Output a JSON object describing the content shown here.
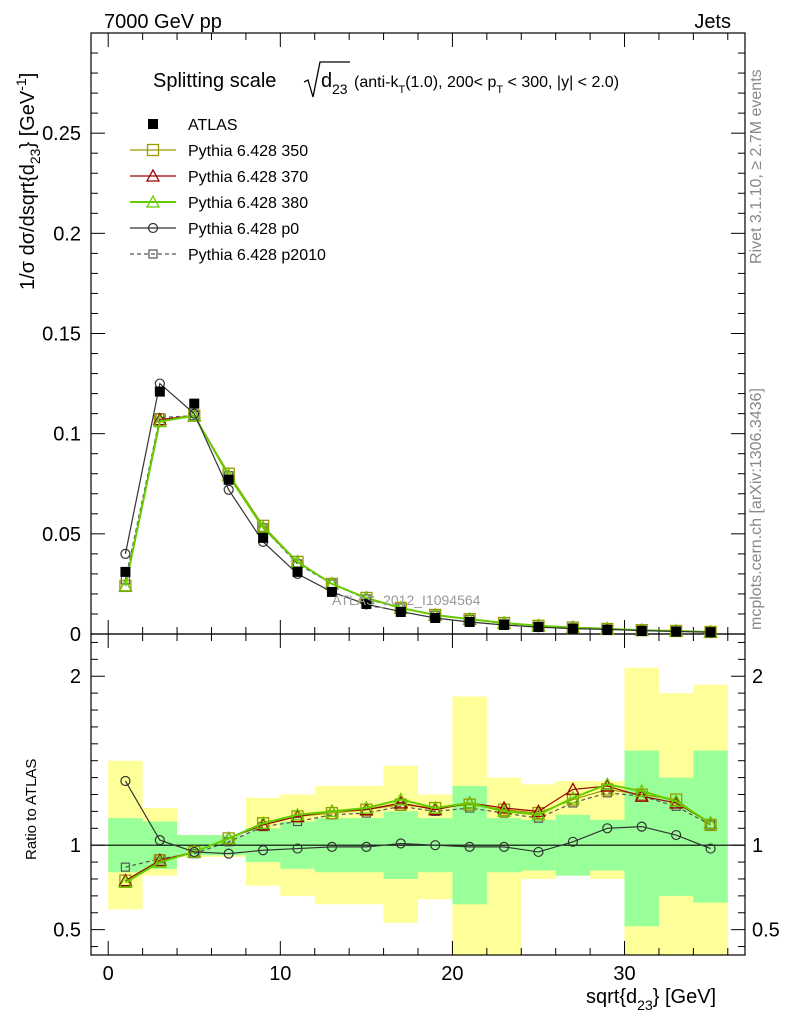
{
  "header": {
    "left": "7000 GeV pp",
    "right": "Jets",
    "side_top": "Rivet 3.1.10, ≥ 2.7M events",
    "side_bottom": "mcplots.cern.ch [arXiv:1306.3436]"
  },
  "watermark": "ATLAS_2012_I1094564",
  "title": {
    "main": "Splitting scale",
    "sqrt_arg": "d",
    "sqrt_sub": "23",
    "detail_a": "(anti-k",
    "detail_sub": "T",
    "detail_b": "(1.0), 200< p",
    "detail_sub2": "T",
    "detail_c": " < 300, |y| < 2.0)"
  },
  "axes": {
    "ylabel_main": "1/σ dσ/dsqrt{d",
    "ylabel_main_sub": "23",
    "ylabel_main_end": "} [GeV",
    "ylabel_main_sup": "-1",
    "ylabel_main_close": "]",
    "ylabel_ratio": "Ratio to ATLAS",
    "xlabel": "sqrt{d",
    "xlabel_sub": "23",
    "xlabel_end": "} [GeV]"
  },
  "legend": [
    {
      "label": "ATLAS",
      "marker": "filled-square",
      "color": "#000000"
    },
    {
      "label": "Pythia 6.428 350",
      "marker": "open-square",
      "color": "#999900"
    },
    {
      "label": "Pythia 6.428 370",
      "marker": "open-triangle",
      "color": "#990000"
    },
    {
      "label": "Pythia 6.428 380",
      "marker": "open-triangle",
      "color": "#66cc00"
    },
    {
      "label": "Pythia 6.428 p0",
      "marker": "open-circle",
      "color": "#333333"
    },
    {
      "label": "Pythia 6.428 p2010",
      "marker": "open-square-dashed",
      "color": "#555555"
    }
  ],
  "chart_data": {
    "type": "line",
    "x": [
      1,
      3,
      5,
      7,
      9,
      11,
      13,
      15,
      17,
      19,
      21,
      23,
      25,
      27,
      29,
      31,
      33,
      35
    ],
    "xlim": [
      -1,
      37
    ],
    "xticks": [
      0,
      10,
      20,
      30
    ],
    "main": {
      "ylim": [
        0,
        0.3
      ],
      "yticks": [
        0,
        0.05,
        0.1,
        0.15,
        0.2,
        0.25
      ],
      "yticklabels": [
        "0",
        "0.05",
        "0.1",
        "0.15",
        "0.2",
        "0.25"
      ],
      "data": [
        0.031,
        0.121,
        0.115,
        0.077,
        0.048,
        0.031,
        0.021,
        0.015,
        0.011,
        0.008,
        0.006,
        0.0045,
        0.0035,
        0.0026,
        0.002,
        0.0015,
        0.0012,
        0.0009
      ],
      "series": [
        {
          "name": "Pythia 6.428 350",
          "values": [
            0.024,
            0.107,
            0.109,
            0.08,
            0.054,
            0.036,
            0.025,
            0.018,
            0.013,
            0.0095,
            0.0074,
            0.0055,
            0.0041,
            0.0032,
            0.0025,
            0.0019,
            0.0015,
            0.001
          ]
        },
        {
          "name": "Pythia 6.428 370",
          "values": [
            0.024,
            0.107,
            0.109,
            0.079,
            0.053,
            0.036,
            0.025,
            0.018,
            0.013,
            0.0095,
            0.0074,
            0.0054,
            0.0041,
            0.0033,
            0.0026,
            0.0019,
            0.0015,
            0.001
          ]
        },
        {
          "name": "Pythia 6.428 380",
          "values": [
            0.024,
            0.106,
            0.109,
            0.079,
            0.053,
            0.036,
            0.025,
            0.018,
            0.013,
            0.0095,
            0.0074,
            0.0055,
            0.0041,
            0.0032,
            0.0026,
            0.0019,
            0.0015,
            0.001
          ]
        },
        {
          "name": "Pythia 6.428 p0",
          "values": [
            0.04,
            0.125,
            0.11,
            0.072,
            0.046,
            0.03,
            0.021,
            0.0148,
            0.0112,
            0.008,
            0.006,
            0.0045,
            0.0034,
            0.0027,
            0.0023,
            0.0017,
            0.0013,
            0.0009
          ]
        },
        {
          "name": "Pythia 6.428 p2010",
          "values": [
            0.027,
            0.108,
            0.109,
            0.079,
            0.053,
            0.035,
            0.025,
            0.0175,
            0.013,
            0.0094,
            0.0073,
            0.0053,
            0.0039,
            0.0031,
            0.0025,
            0.0019,
            0.0015,
            0.001
          ]
        }
      ]
    },
    "ratio": {
      "ylim": [
        0.35,
        2.25
      ],
      "yticks": [
        0.5,
        1,
        2
      ],
      "yticklabels": [
        "0.5",
        "1",
        "2"
      ],
      "band_inner": [
        [
          0.84,
          1.16
        ],
        [
          0.86,
          1.14
        ],
        [
          0.94,
          1.06
        ],
        [
          0.94,
          1.06
        ],
        [
          0.9,
          1.1
        ],
        [
          0.86,
          1.14
        ],
        [
          0.84,
          1.16
        ],
        [
          0.84,
          1.16
        ],
        [
          0.8,
          1.2
        ],
        [
          0.84,
          1.16
        ],
        [
          0.65,
          1.35
        ],
        [
          0.84,
          1.16
        ],
        [
          0.85,
          1.15
        ],
        [
          0.82,
          1.18
        ],
        [
          0.85,
          1.15
        ],
        [
          0.52,
          1.56
        ],
        [
          0.7,
          1.4
        ],
        [
          0.66,
          1.56
        ]
      ],
      "band_outer": [
        [
          0.62,
          1.5
        ],
        [
          0.82,
          1.22
        ],
        [
          0.93,
          1.06
        ],
        [
          0.93,
          1.06
        ],
        [
          0.76,
          1.28
        ],
        [
          0.7,
          1.3
        ],
        [
          0.65,
          1.35
        ],
        [
          0.65,
          1.35
        ],
        [
          0.54,
          1.47
        ],
        [
          0.68,
          1.3
        ],
        [
          0.35,
          1.88
        ],
        [
          0.35,
          1.4
        ],
        [
          0.8,
          1.36
        ],
        [
          0.82,
          1.38
        ],
        [
          0.8,
          1.38
        ],
        [
          0.35,
          2.05
        ],
        [
          0.35,
          1.9
        ],
        [
          0.35,
          1.95
        ]
      ],
      "series": [
        {
          "name": "Pythia 6.428 350",
          "values": [
            0.79,
            0.91,
            0.96,
            1.04,
            1.13,
            1.17,
            1.19,
            1.21,
            1.24,
            1.22,
            1.24,
            1.21,
            1.19,
            1.27,
            1.33,
            1.3,
            1.27,
            1.12
          ]
        },
        {
          "name": "Pythia 6.428 370",
          "values": [
            0.79,
            0.91,
            0.96,
            1.04,
            1.12,
            1.17,
            1.2,
            1.21,
            1.25,
            1.21,
            1.25,
            1.22,
            1.2,
            1.33,
            1.35,
            1.29,
            1.25,
            1.13
          ]
        },
        {
          "name": "Pythia 6.428 380",
          "values": [
            0.78,
            0.9,
            0.96,
            1.04,
            1.13,
            1.18,
            1.2,
            1.22,
            1.27,
            1.22,
            1.25,
            1.2,
            1.18,
            1.28,
            1.36,
            1.32,
            1.26,
            1.13
          ]
        },
        {
          "name": "Pythia 6.428 p0",
          "values": [
            1.38,
            1.03,
            0.96,
            0.95,
            0.97,
            0.98,
            0.99,
            0.99,
            1.01,
            1.0,
            0.99,
            0.99,
            0.96,
            1.02,
            1.1,
            1.11,
            1.06,
            0.98
          ]
        },
        {
          "name": "Pythia 6.428 p2010",
          "values": [
            0.87,
            0.92,
            0.95,
            1.02,
            1.11,
            1.14,
            1.18,
            1.19,
            1.23,
            1.2,
            1.22,
            1.19,
            1.16,
            1.25,
            1.31,
            1.29,
            1.23,
            1.12
          ]
        }
      ]
    }
  }
}
